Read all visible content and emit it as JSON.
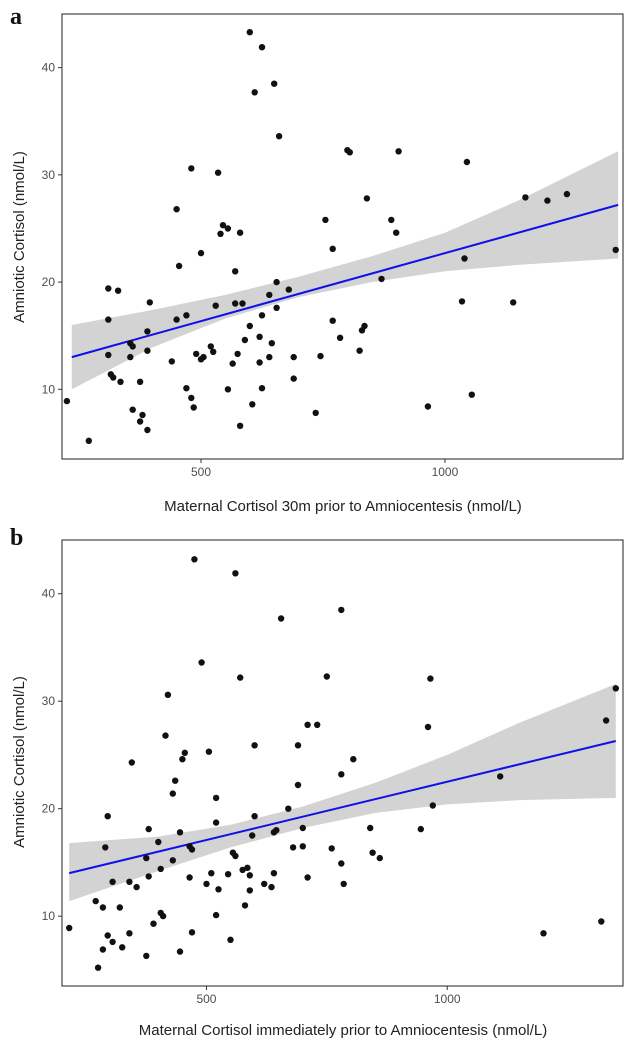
{
  "chart_data": [
    {
      "type": "scatter",
      "panel_label": "a",
      "xlabel": "Maternal Cortisol 30m prior to Amniocentesis (nmol/L)",
      "ylabel": "Amniotic Cortisol (nmol/L)",
      "xlim": [
        215,
        1365
      ],
      "ylim": [
        3.5,
        45
      ],
      "x_ticks": [
        500,
        1000
      ],
      "y_ticks": [
        10,
        20,
        30,
        40
      ],
      "x_tick_labels": [
        "500",
        "1000"
      ],
      "y_tick_labels": [
        "10",
        "20",
        "30",
        "40"
      ],
      "grid": false,
      "colors": {
        "points": "#111111",
        "fit_line": "#1010e8",
        "band": "#d3d3d3"
      },
      "fit_line": {
        "x": [
          235,
          1355
        ],
        "y": [
          13.0,
          27.2
        ]
      },
      "confidence_band": {
        "x": [
          235,
          400,
          550,
          700,
          850,
          1000,
          1150,
          1355
        ],
        "lower": [
          10.0,
          13.9,
          16.6,
          18.6,
          20.0,
          21.0,
          21.6,
          22.2
        ],
        "upper": [
          16.0,
          17.4,
          18.8,
          20.5,
          22.4,
          24.6,
          27.6,
          32.2
        ]
      },
      "points": [
        [
          600,
          43.3
        ],
        [
          625,
          41.9
        ],
        [
          650,
          38.5
        ],
        [
          610,
          37.7
        ],
        [
          660,
          33.6
        ],
        [
          800,
          32.3
        ],
        [
          805,
          32.1
        ],
        [
          905,
          32.2
        ],
        [
          1045,
          31.2
        ],
        [
          480,
          30.6
        ],
        [
          535,
          30.2
        ],
        [
          840,
          27.8
        ],
        [
          1165,
          27.9
        ],
        [
          1210,
          27.6
        ],
        [
          1250,
          28.2
        ],
        [
          450,
          26.8
        ],
        [
          755,
          25.8
        ],
        [
          890,
          25.8
        ],
        [
          545,
          25.3
        ],
        [
          555,
          25.0
        ],
        [
          540,
          24.5
        ],
        [
          580,
          24.6
        ],
        [
          900,
          24.6
        ],
        [
          500,
          22.7
        ],
        [
          1040,
          22.2
        ],
        [
          770,
          23.1
        ],
        [
          1350,
          23.0
        ],
        [
          570,
          21.0
        ],
        [
          455,
          21.5
        ],
        [
          655,
          20.0
        ],
        [
          870,
          20.3
        ],
        [
          680,
          19.3
        ],
        [
          310,
          19.4
        ],
        [
          330,
          19.2
        ],
        [
          570,
          18.0
        ],
        [
          585,
          18.0
        ],
        [
          1035,
          18.2
        ],
        [
          1140,
          18.1
        ],
        [
          395,
          18.1
        ],
        [
          530,
          17.8
        ],
        [
          640,
          18.8
        ],
        [
          655,
          17.6
        ],
        [
          470,
          16.9
        ],
        [
          310,
          16.5
        ],
        [
          450,
          16.5
        ],
        [
          770,
          16.4
        ],
        [
          600,
          15.9
        ],
        [
          625,
          16.9
        ],
        [
          835,
          15.9
        ],
        [
          830,
          15.5
        ],
        [
          390,
          15.4
        ],
        [
          355,
          14.3
        ],
        [
          360,
          14.0
        ],
        [
          620,
          14.9
        ],
        [
          645,
          14.3
        ],
        [
          785,
          14.8
        ],
        [
          590,
          14.6
        ],
        [
          520,
          14.0
        ],
        [
          525,
          13.5
        ],
        [
          390,
          13.6
        ],
        [
          490,
          13.3
        ],
        [
          825,
          13.6
        ],
        [
          355,
          13.0
        ],
        [
          505,
          13.0
        ],
        [
          310,
          13.2
        ],
        [
          440,
          12.6
        ],
        [
          565,
          12.4
        ],
        [
          575,
          13.3
        ],
        [
          620,
          12.5
        ],
        [
          640,
          13.0
        ],
        [
          690,
          13.0
        ],
        [
          745,
          13.1
        ],
        [
          500,
          12.8
        ],
        [
          315,
          11.4
        ],
        [
          320,
          11.1
        ],
        [
          335,
          10.7
        ],
        [
          375,
          10.7
        ],
        [
          470,
          10.1
        ],
        [
          555,
          10.0
        ],
        [
          625,
          10.1
        ],
        [
          690,
          11.0
        ],
        [
          1055,
          9.5
        ],
        [
          480,
          9.2
        ],
        [
          605,
          8.6
        ],
        [
          485,
          8.3
        ],
        [
          360,
          8.1
        ],
        [
          380,
          7.6
        ],
        [
          735,
          7.8
        ],
        [
          965,
          8.4
        ],
        [
          225,
          8.9
        ],
        [
          375,
          7.0
        ],
        [
          390,
          6.2
        ],
        [
          580,
          6.6
        ],
        [
          270,
          5.2
        ]
      ]
    },
    {
      "type": "scatter",
      "panel_label": "b",
      "xlabel": "Maternal Cortisol immediately prior to Amniocentesis (nmol/L)",
      "ylabel": "Amniotic Cortisol (nmol/L)",
      "xlim": [
        200,
        1365
      ],
      "ylim": [
        3.5,
        45
      ],
      "x_ticks": [
        500,
        1000
      ],
      "y_ticks": [
        10,
        20,
        30,
        40
      ],
      "x_tick_labels": [
        "500",
        "1000"
      ],
      "y_tick_labels": [
        "10",
        "20",
        "30",
        "40"
      ],
      "grid": false,
      "colors": {
        "points": "#111111",
        "fit_line": "#1010e8",
        "band": "#d3d3d3"
      },
      "fit_line": {
        "x": [
          215,
          1350
        ],
        "y": [
          14.0,
          26.3
        ]
      },
      "confidence_band": {
        "x": [
          215,
          400,
          550,
          700,
          850,
          1000,
          1150,
          1350
        ],
        "lower": [
          11.4,
          14.2,
          16.4,
          18.2,
          19.6,
          20.4,
          20.8,
          21.0
        ],
        "upper": [
          16.8,
          17.4,
          18.5,
          20.2,
          22.4,
          25.0,
          28.0,
          31.6
        ]
      },
      "points": [
        [
          475,
          43.2
        ],
        [
          560,
          41.9
        ],
        [
          780,
          38.5
        ],
        [
          655,
          37.7
        ],
        [
          490,
          33.6
        ],
        [
          570,
          32.2
        ],
        [
          750,
          32.3
        ],
        [
          965,
          32.1
        ],
        [
          1350,
          31.2
        ],
        [
          420,
          30.6
        ],
        [
          1330,
          28.2
        ],
        [
          710,
          27.8
        ],
        [
          730,
          27.8
        ],
        [
          960,
          27.6
        ],
        [
          415,
          26.8
        ],
        [
          600,
          25.9
        ],
        [
          690,
          25.9
        ],
        [
          455,
          25.2
        ],
        [
          450,
          24.6
        ],
        [
          505,
          25.3
        ],
        [
          345,
          24.3
        ],
        [
          805,
          24.6
        ],
        [
          435,
          22.6
        ],
        [
          1110,
          23.0
        ],
        [
          690,
          22.2
        ],
        [
          780,
          23.2
        ],
        [
          430,
          21.4
        ],
        [
          520,
          21.0
        ],
        [
          670,
          20.0
        ],
        [
          970,
          20.3
        ],
        [
          600,
          19.3
        ],
        [
          295,
          19.3
        ],
        [
          520,
          18.7
        ],
        [
          645,
          18.0
        ],
        [
          640,
          17.8
        ],
        [
          380,
          18.1
        ],
        [
          840,
          18.2
        ],
        [
          945,
          18.1
        ],
        [
          445,
          17.8
        ],
        [
          700,
          18.2
        ],
        [
          595,
          17.5
        ],
        [
          400,
          16.9
        ],
        [
          290,
          16.4
        ],
        [
          465,
          16.5
        ],
        [
          470,
          16.2
        ],
        [
          680,
          16.4
        ],
        [
          760,
          16.3
        ],
        [
          700,
          16.5
        ],
        [
          555,
          15.9
        ],
        [
          560,
          15.6
        ],
        [
          845,
          15.9
        ],
        [
          860,
          15.4
        ],
        [
          375,
          15.4
        ],
        [
          430,
          15.2
        ],
        [
          405,
          14.4
        ],
        [
          585,
          14.5
        ],
        [
          575,
          14.3
        ],
        [
          780,
          14.9
        ],
        [
          590,
          13.8
        ],
        [
          640,
          14.0
        ],
        [
          545,
          13.9
        ],
        [
          380,
          13.7
        ],
        [
          465,
          13.6
        ],
        [
          510,
          14.0
        ],
        [
          710,
          13.6
        ],
        [
          785,
          13.0
        ],
        [
          340,
          13.2
        ],
        [
          305,
          13.2
        ],
        [
          355,
          12.7
        ],
        [
          500,
          13.0
        ],
        [
          525,
          12.5
        ],
        [
          590,
          12.4
        ],
        [
          635,
          12.7
        ],
        [
          620,
          13.0
        ],
        [
          270,
          11.4
        ],
        [
          285,
          10.8
        ],
        [
          320,
          10.8
        ],
        [
          405,
          10.3
        ],
        [
          520,
          10.1
        ],
        [
          580,
          11.0
        ],
        [
          410,
          10.0
        ],
        [
          1320,
          9.5
        ],
        [
          390,
          9.3
        ],
        [
          470,
          8.5
        ],
        [
          215,
          8.9
        ],
        [
          295,
          8.2
        ],
        [
          340,
          8.4
        ],
        [
          1200,
          8.4
        ],
        [
          305,
          7.6
        ],
        [
          550,
          7.8
        ],
        [
          325,
          7.1
        ],
        [
          445,
          6.7
        ],
        [
          375,
          6.3
        ],
        [
          275,
          5.2
        ],
        [
          285,
          6.9
        ]
      ]
    }
  ]
}
